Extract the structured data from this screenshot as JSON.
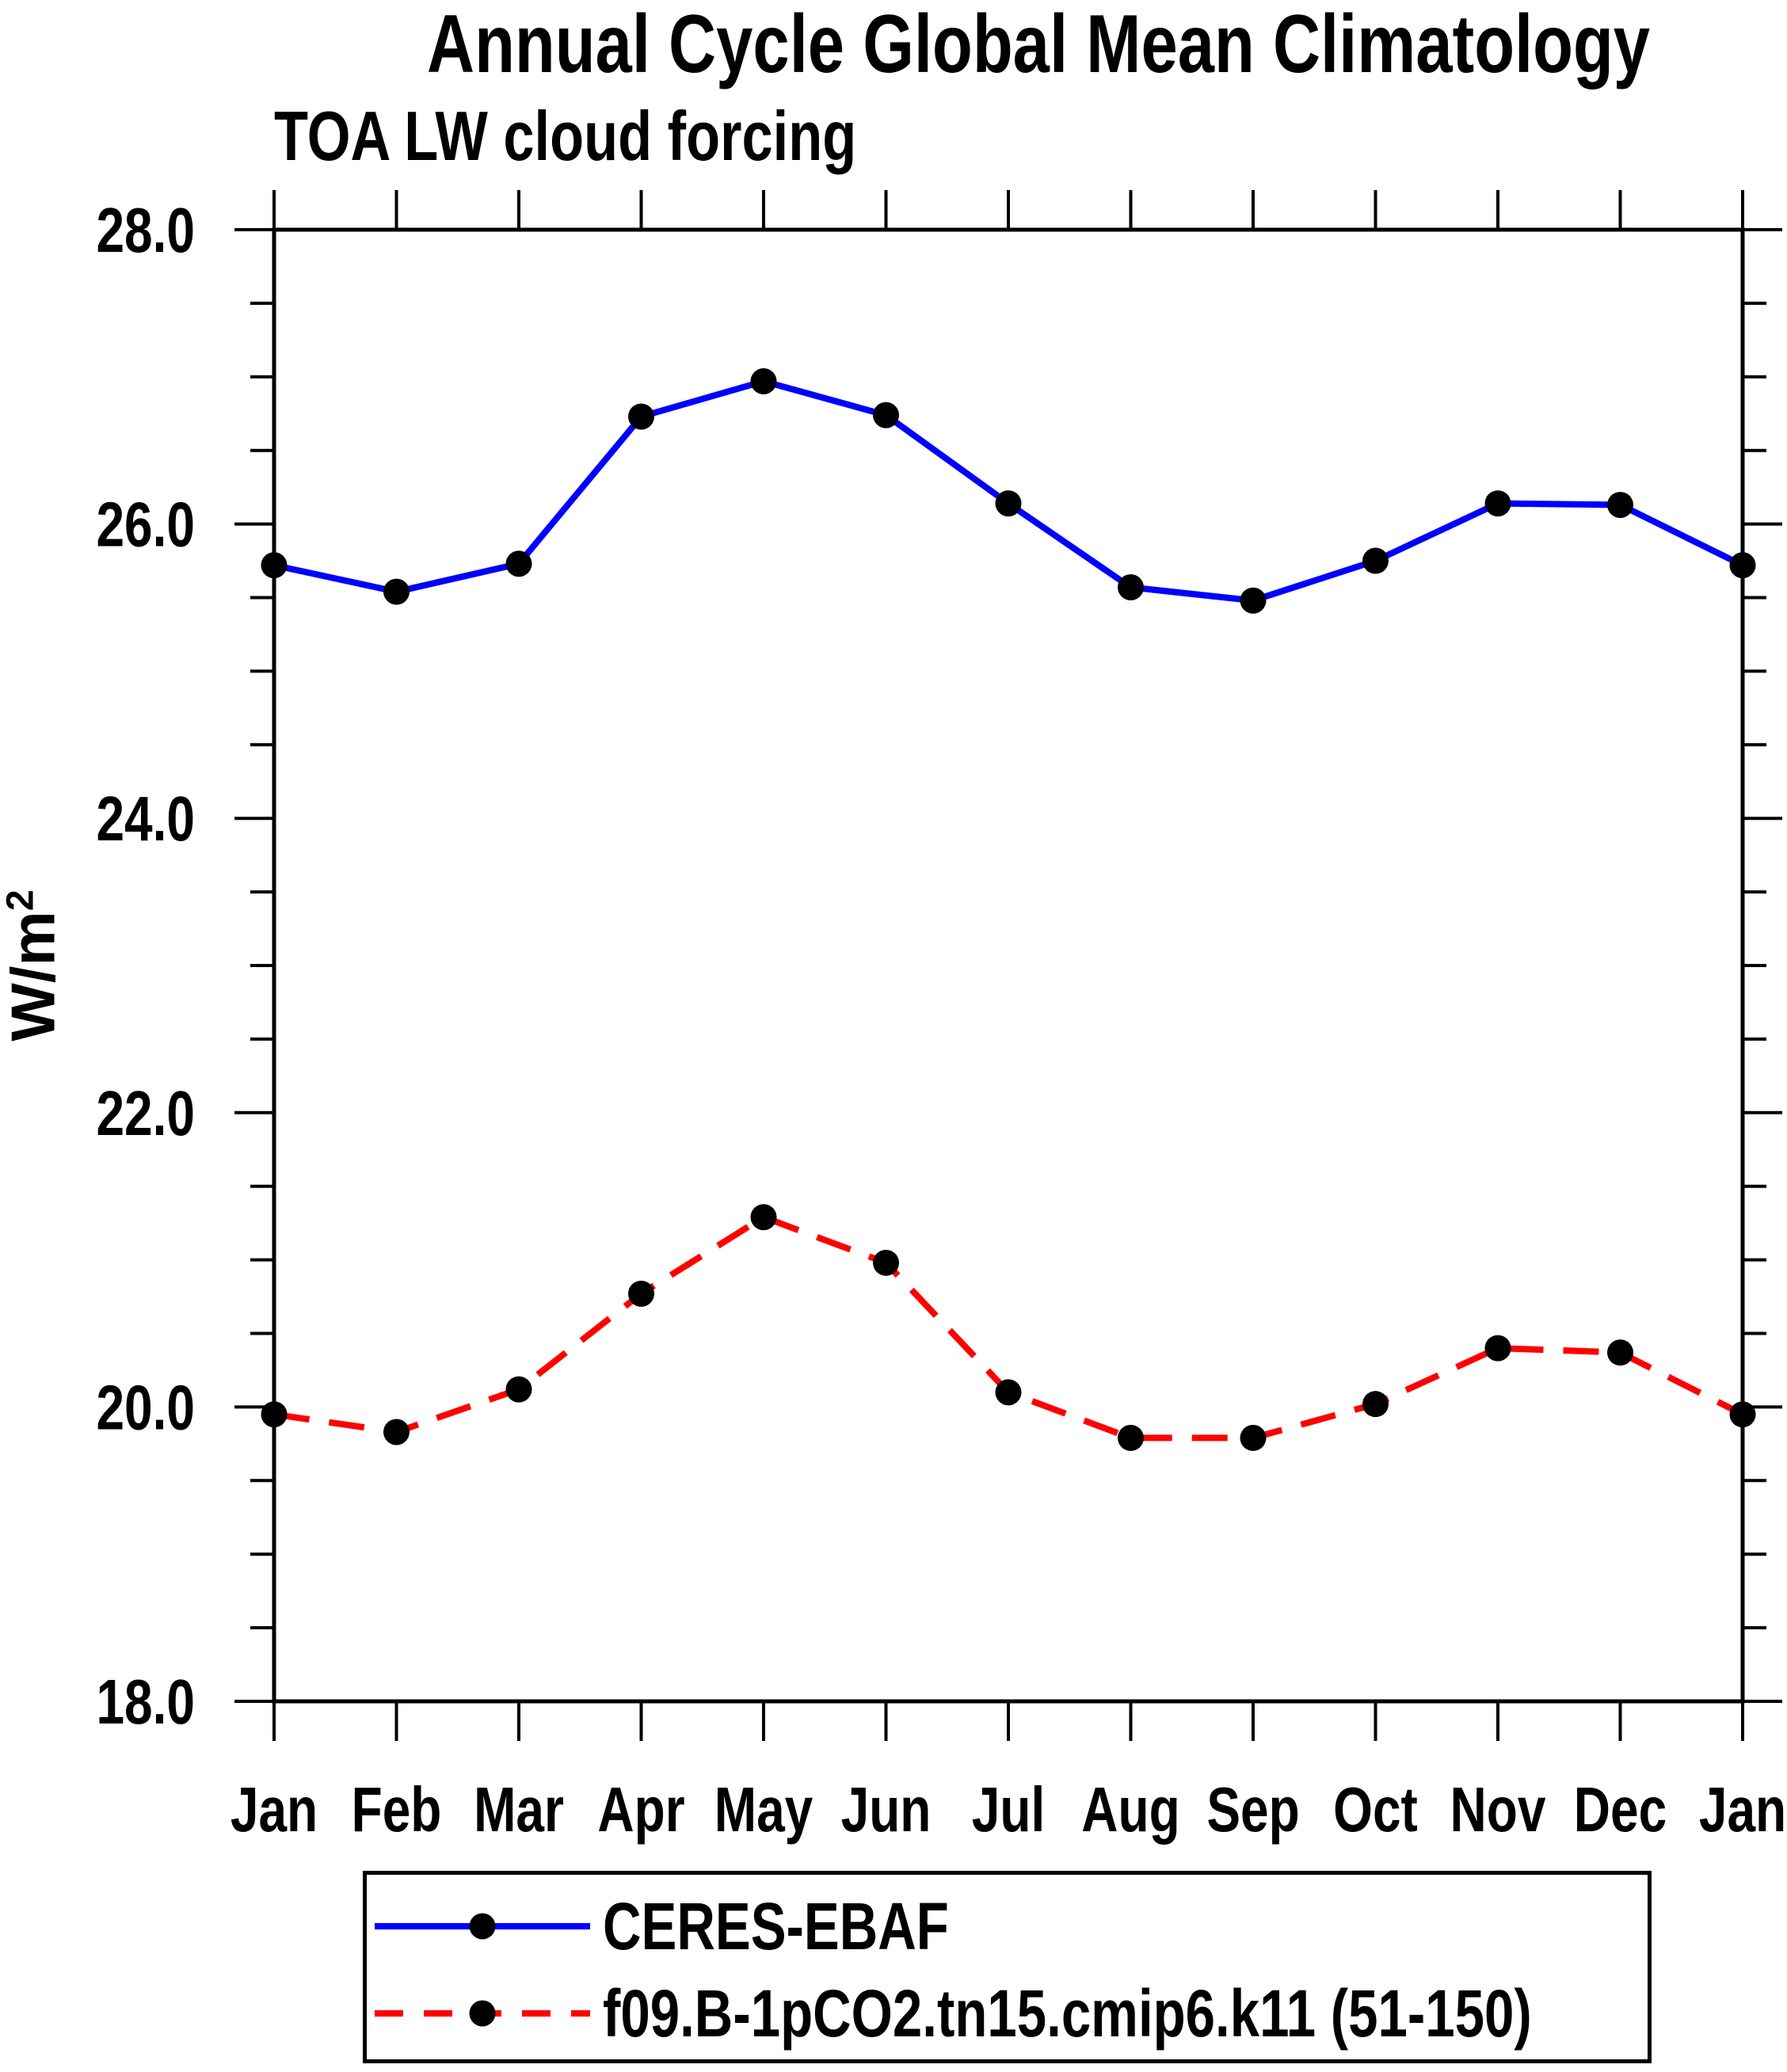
{
  "titles": {
    "main": "Annual Cycle Global Mean Climatology",
    "left": "TOA LW cloud forcing"
  },
  "y_axis": {
    "label_base": "W/m",
    "label_sup": "2",
    "min": 18.0,
    "max": 28.0,
    "major_step": 2.0,
    "minor_step": 0.5,
    "tick_labels": [
      "18.0",
      "20.0",
      "22.0",
      "24.0",
      "26.0",
      "28.0"
    ]
  },
  "x_axis": {
    "tick_labels": [
      "Jan",
      "Feb",
      "Mar",
      "Apr",
      "May",
      "Jun",
      "Jul",
      "Aug",
      "Sep",
      "Oct",
      "Nov",
      "Dec",
      "Jan"
    ]
  },
  "legend": {
    "items": [
      {
        "label": "CERES-EBAF",
        "color": "#0000ff",
        "style": "solid",
        "marker": "filled-circle"
      },
      {
        "label": "f09.B-1pCO2.tn15.cmip6.k11 (51-150)",
        "color": "#ff0000",
        "style": "dashed",
        "marker": "filled-circle"
      }
    ]
  },
  "colors": {
    "obs_line": "#0000ff",
    "model_line": "#ff0000",
    "marker": "#000000",
    "axis": "#000000",
    "background": "#ffffff"
  },
  "chart_data": {
    "type": "line",
    "title": "Annual Cycle Global Mean Climatology",
    "subtitle": "TOA LW cloud forcing",
    "ylabel": "W/m2",
    "xlabel": "",
    "ylim": [
      18.0,
      28.0
    ],
    "y_major_step": 2.0,
    "y_minor_step": 0.5,
    "grid": false,
    "legend_position": "bottom",
    "categories": [
      "Jan",
      "Feb",
      "Mar",
      "Apr",
      "May",
      "Jun",
      "Jul",
      "Aug",
      "Sep",
      "Oct",
      "Nov",
      "Dec",
      "Jan"
    ],
    "series": [
      {
        "name": "CERES-EBAF",
        "color": "#0000ff",
        "line_style": "solid",
        "marker": "filled-circle",
        "values": [
          25.72,
          25.54,
          25.73,
          26.73,
          26.97,
          26.74,
          26.14,
          25.57,
          25.48,
          25.75,
          26.14,
          26.13,
          25.72
        ]
      },
      {
        "name": "f09.B-1pCO2.tn15.cmip6.k11 (51-150)",
        "color": "#ff0000",
        "line_style": "dashed",
        "marker": "filled-circle",
        "values": [
          19.95,
          19.83,
          20.12,
          20.77,
          21.29,
          20.98,
          20.1,
          19.79,
          19.79,
          20.02,
          20.4,
          20.37,
          19.95
        ]
      }
    ]
  }
}
